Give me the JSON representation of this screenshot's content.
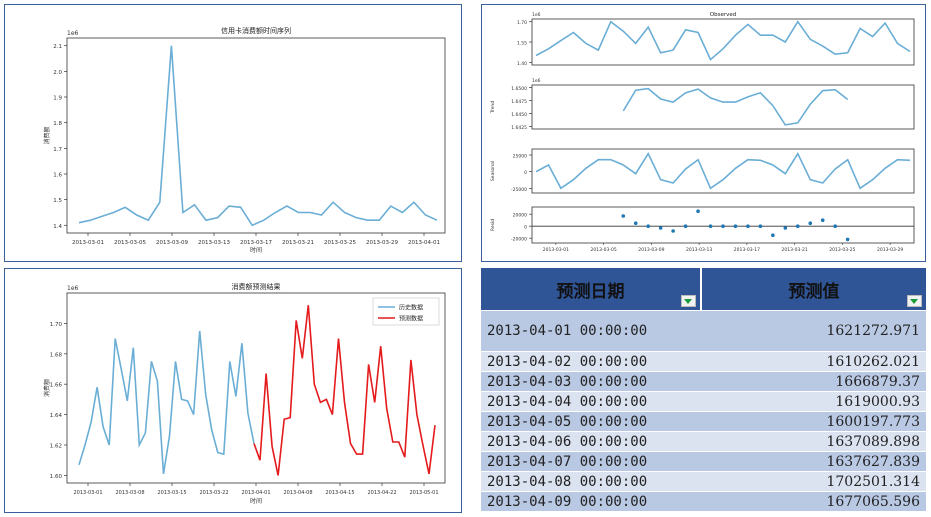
{
  "chart_data": [
    {
      "type": "line",
      "title": "信用卡消费额时间序列",
      "xlabel": "时间",
      "ylabel": "消费额",
      "scale_label": "1e6",
      "ylim": [
        1.37,
        2.13
      ],
      "yticks": [
        "1.4",
        "1.5",
        "1.6",
        "1.7",
        "1.8",
        "1.9",
        "2.0",
        "2.1"
      ],
      "xticks": [
        "2013-03-01",
        "2013-03-05",
        "2013-03-09",
        "2013-03-13",
        "2013-03-17",
        "2013-03-21",
        "2013-03-25",
        "2013-03-29",
        "2013-04-01"
      ],
      "series": [
        {
          "color": "#6aaed6",
          "values": [
            1.41,
            1.42,
            1.435,
            1.45,
            1.47,
            1.44,
            1.42,
            1.49,
            2.1,
            1.45,
            1.48,
            1.42,
            1.43,
            1.475,
            1.47,
            1.4,
            1.42,
            1.45,
            1.475,
            1.45,
            1.45,
            1.44,
            1.49,
            1.45,
            1.43,
            1.42,
            1.42,
            1.475,
            1.45,
            1.49,
            1.44,
            1.42
          ]
        }
      ]
    },
    {
      "type": "line",
      "title": "",
      "subplots": [
        {
          "name": "Observed",
          "ylabel": "",
          "scale_label": "1e6",
          "yticks": [
            "1.40",
            "1.55",
            "1.70"
          ],
          "ylim": [
            1.38,
            1.72
          ],
          "values": [
            1.45,
            1.5,
            1.56,
            1.62,
            1.54,
            1.49,
            1.7,
            1.63,
            1.54,
            1.66,
            1.47,
            1.49,
            1.64,
            1.62,
            1.42,
            1.5,
            1.6,
            1.68,
            1.6,
            1.6,
            1.55,
            1.7,
            1.57,
            1.52,
            1.46,
            1.47,
            1.65,
            1.59,
            1.69,
            1.54,
            1.48
          ]
        },
        {
          "name": "Trend",
          "ylabel": "Trend",
          "scale_label": "1e6",
          "yticks": [
            "1.6425",
            "1.6450",
            "1.6475",
            "1.6500"
          ],
          "ylim": [
            1.642,
            1.6505
          ],
          "start": 7,
          "values": [
            1.6455,
            1.6495,
            1.6498,
            1.6478,
            1.6472,
            1.649,
            1.6497,
            1.648,
            1.6472,
            1.6472,
            1.6482,
            1.649,
            1.6465,
            1.6428,
            1.6432,
            1.6468,
            1.6494,
            1.6496,
            1.6477
          ]
        },
        {
          "name": "Seasonal",
          "ylabel": "Seasonal",
          "yticks": [
            "-25000",
            "0",
            "25000"
          ],
          "ylim": [
            -32000,
            34000
          ],
          "values": [
            0,
            10000,
            -25000,
            -12000,
            5000,
            18000,
            18000,
            10000,
            -3000,
            27000,
            -12000,
            -17000,
            4000,
            18000,
            -25000,
            -12000,
            5000,
            18000,
            17000,
            10000,
            -3000,
            27000,
            -12000,
            -17000,
            4000,
            18000,
            -25000,
            -12000,
            5000,
            18000,
            17000
          ]
        },
        {
          "name": "Resid",
          "ylabel": "Resid",
          "yticks": [
            "-20000",
            "0",
            "20000"
          ],
          "ylim": [
            -28000,
            32000
          ],
          "start": 7,
          "values": [
            17000,
            5000,
            0,
            -3000,
            -8000,
            0,
            25000,
            0,
            0,
            0,
            0,
            0,
            -15000,
            -3000,
            0,
            5000,
            10000,
            0,
            -22000
          ]
        }
      ],
      "xticks": [
        "2013-03-01",
        "2013-03-05",
        "2013-03-09",
        "2013-03-13",
        "2013-03-17",
        "2013-03-21",
        "2013-03-25",
        "2013-03-29"
      ]
    },
    {
      "type": "line",
      "title": "消费额预测结果",
      "xlabel": "时间",
      "ylabel": "消费额",
      "scale_label": "1e6",
      "ylim": [
        1.595,
        1.72
      ],
      "yticks": [
        "1.60",
        "1.62",
        "1.64",
        "1.66",
        "1.68",
        "1.70"
      ],
      "xticks": [
        "2013-03-01",
        "2013-03-08",
        "2013-03-15",
        "2013-03-22",
        "2013-04-01",
        "2013-04-08",
        "2013-04-15",
        "2013-04-22",
        "2013-05-01"
      ],
      "legend_position": "top-right",
      "series": [
        {
          "name": "历史数据",
          "color": "#6aaed6",
          "values": [
            1.607,
            1.62,
            1.635,
            1.658,
            1.632,
            1.62,
            1.69,
            1.67,
            1.649,
            1.684,
            1.62,
            1.628,
            1.675,
            1.662,
            1.601,
            1.626,
            1.675,
            1.65,
            1.649,
            1.64,
            1.695,
            1.653,
            1.63,
            1.615,
            1.614,
            1.675,
            1.652,
            1.687,
            1.641,
            1.621
          ]
        },
        {
          "name": "预测数据",
          "color": "#e41a1c",
          "values": [
            1.621,
            1.61,
            1.667,
            1.619,
            1.6,
            1.637,
            1.638,
            1.702,
            1.677,
            1.712,
            1.66,
            1.648,
            1.65,
            1.64,
            1.69,
            1.648,
            1.621,
            1.614,
            1.614,
            1.673,
            1.648,
            1.685,
            1.644,
            1.622,
            1.622,
            1.612,
            1.676,
            1.64,
            1.62,
            1.601,
            1.633
          ]
        }
      ]
    }
  ],
  "forecast_table": {
    "headers": [
      "预测日期",
      "预测值"
    ],
    "rows": [
      {
        "date": "2013-04-01  00:00:00",
        "value": "1621272.971"
      },
      {
        "date": "2013-04-02  00:00:00",
        "value": "1610262.021"
      },
      {
        "date": "2013-04-03  00:00:00",
        "value": "1666879.37"
      },
      {
        "date": "2013-04-04  00:00:00",
        "value": "1619000.93"
      },
      {
        "date": "2013-04-05  00:00:00",
        "value": "1600197.773"
      },
      {
        "date": "2013-04-06  00:00:00",
        "value": "1637089.898"
      },
      {
        "date": "2013-04-07  00:00:00",
        "value": "1637627.839"
      },
      {
        "date": "2013-04-08  00:00:00",
        "value": "1702501.314"
      },
      {
        "date": "2013-04-09  00:00:00",
        "value": "1677065.596"
      }
    ]
  }
}
